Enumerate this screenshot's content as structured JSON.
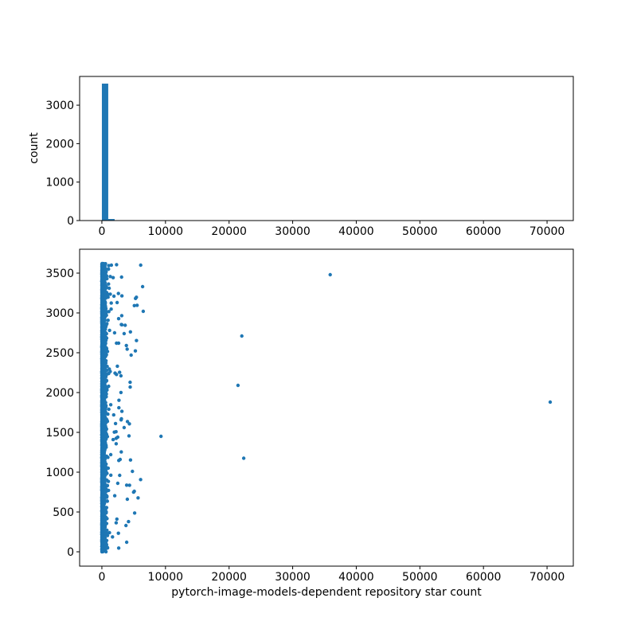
{
  "figure": {
    "background": "#ffffff",
    "accent_color": "#1f77b4",
    "title": ""
  },
  "chart_data": [
    {
      "type": "histogram",
      "title": "",
      "xlabel": "",
      "ylabel": "count",
      "xlim": [
        -3500,
        74125
      ],
      "ylim": [
        0,
        3747
      ],
      "xticks": [
        0,
        10000,
        20000,
        30000,
        40000,
        50000,
        60000,
        70000
      ],
      "yticks": [
        0,
        1000,
        2000,
        3000
      ],
      "grid": false,
      "legend": false,
      "bar_color": "#1f77b4",
      "bins": [
        {
          "x0": 0,
          "x1": 1000,
          "count": 3560
        },
        {
          "x0": 1000,
          "x1": 2000,
          "count": 40
        }
      ]
    },
    {
      "type": "scatter",
      "title": "",
      "xlabel": "pytorch-image-models-dependent repository star count",
      "ylabel": "",
      "xlim": [
        -3500,
        74125
      ],
      "ylim": [
        -180,
        3800
      ],
      "xticks": [
        0,
        10000,
        20000,
        30000,
        40000,
        50000,
        60000,
        70000
      ],
      "yticks": [
        0,
        500,
        1000,
        1500,
        2000,
        2500,
        3000,
        3500
      ],
      "grid": false,
      "legend": false,
      "point_color": "#1f77b4",
      "marker_radius": 2.2,
      "cluster": {
        "n": 3620,
        "y_start": 0,
        "y_end": 3620,
        "x_exp_mean": 170,
        "spread_prob": 0.025,
        "spread_min": 300,
        "spread_max": 6000,
        "seed": 7
      },
      "outliers": [
        [
          35900,
          3480
        ],
        [
          70500,
          1880
        ],
        [
          22000,
          2710
        ],
        [
          21400,
          2090
        ],
        [
          22300,
          1175
        ],
        [
          9300,
          1450
        ],
        [
          6100,
          3600
        ],
        [
          6400,
          3330
        ],
        [
          6500,
          3020
        ],
        [
          4600,
          2470
        ],
        [
          3500,
          2740
        ],
        [
          3100,
          3450
        ],
        [
          1900,
          3210
        ],
        [
          2400,
          3130
        ],
        [
          3000,
          2210
        ],
        [
          2300,
          2620
        ],
        [
          3500,
          1560
        ],
        [
          2500,
          1440
        ],
        [
          4800,
          1010
        ],
        [
          2800,
          960
        ],
        [
          2500,
          860
        ],
        [
          5100,
          760
        ],
        [
          4000,
          660
        ],
        [
          3900,
          120
        ],
        [
          1200,
          240
        ],
        [
          1500,
          3600
        ],
        [
          1100,
          1790
        ],
        [
          1400,
          1220
        ],
        [
          1000,
          1050
        ],
        [
          2000,
          2750
        ],
        [
          800,
          3430
        ],
        [
          600,
          2750
        ]
      ]
    }
  ]
}
